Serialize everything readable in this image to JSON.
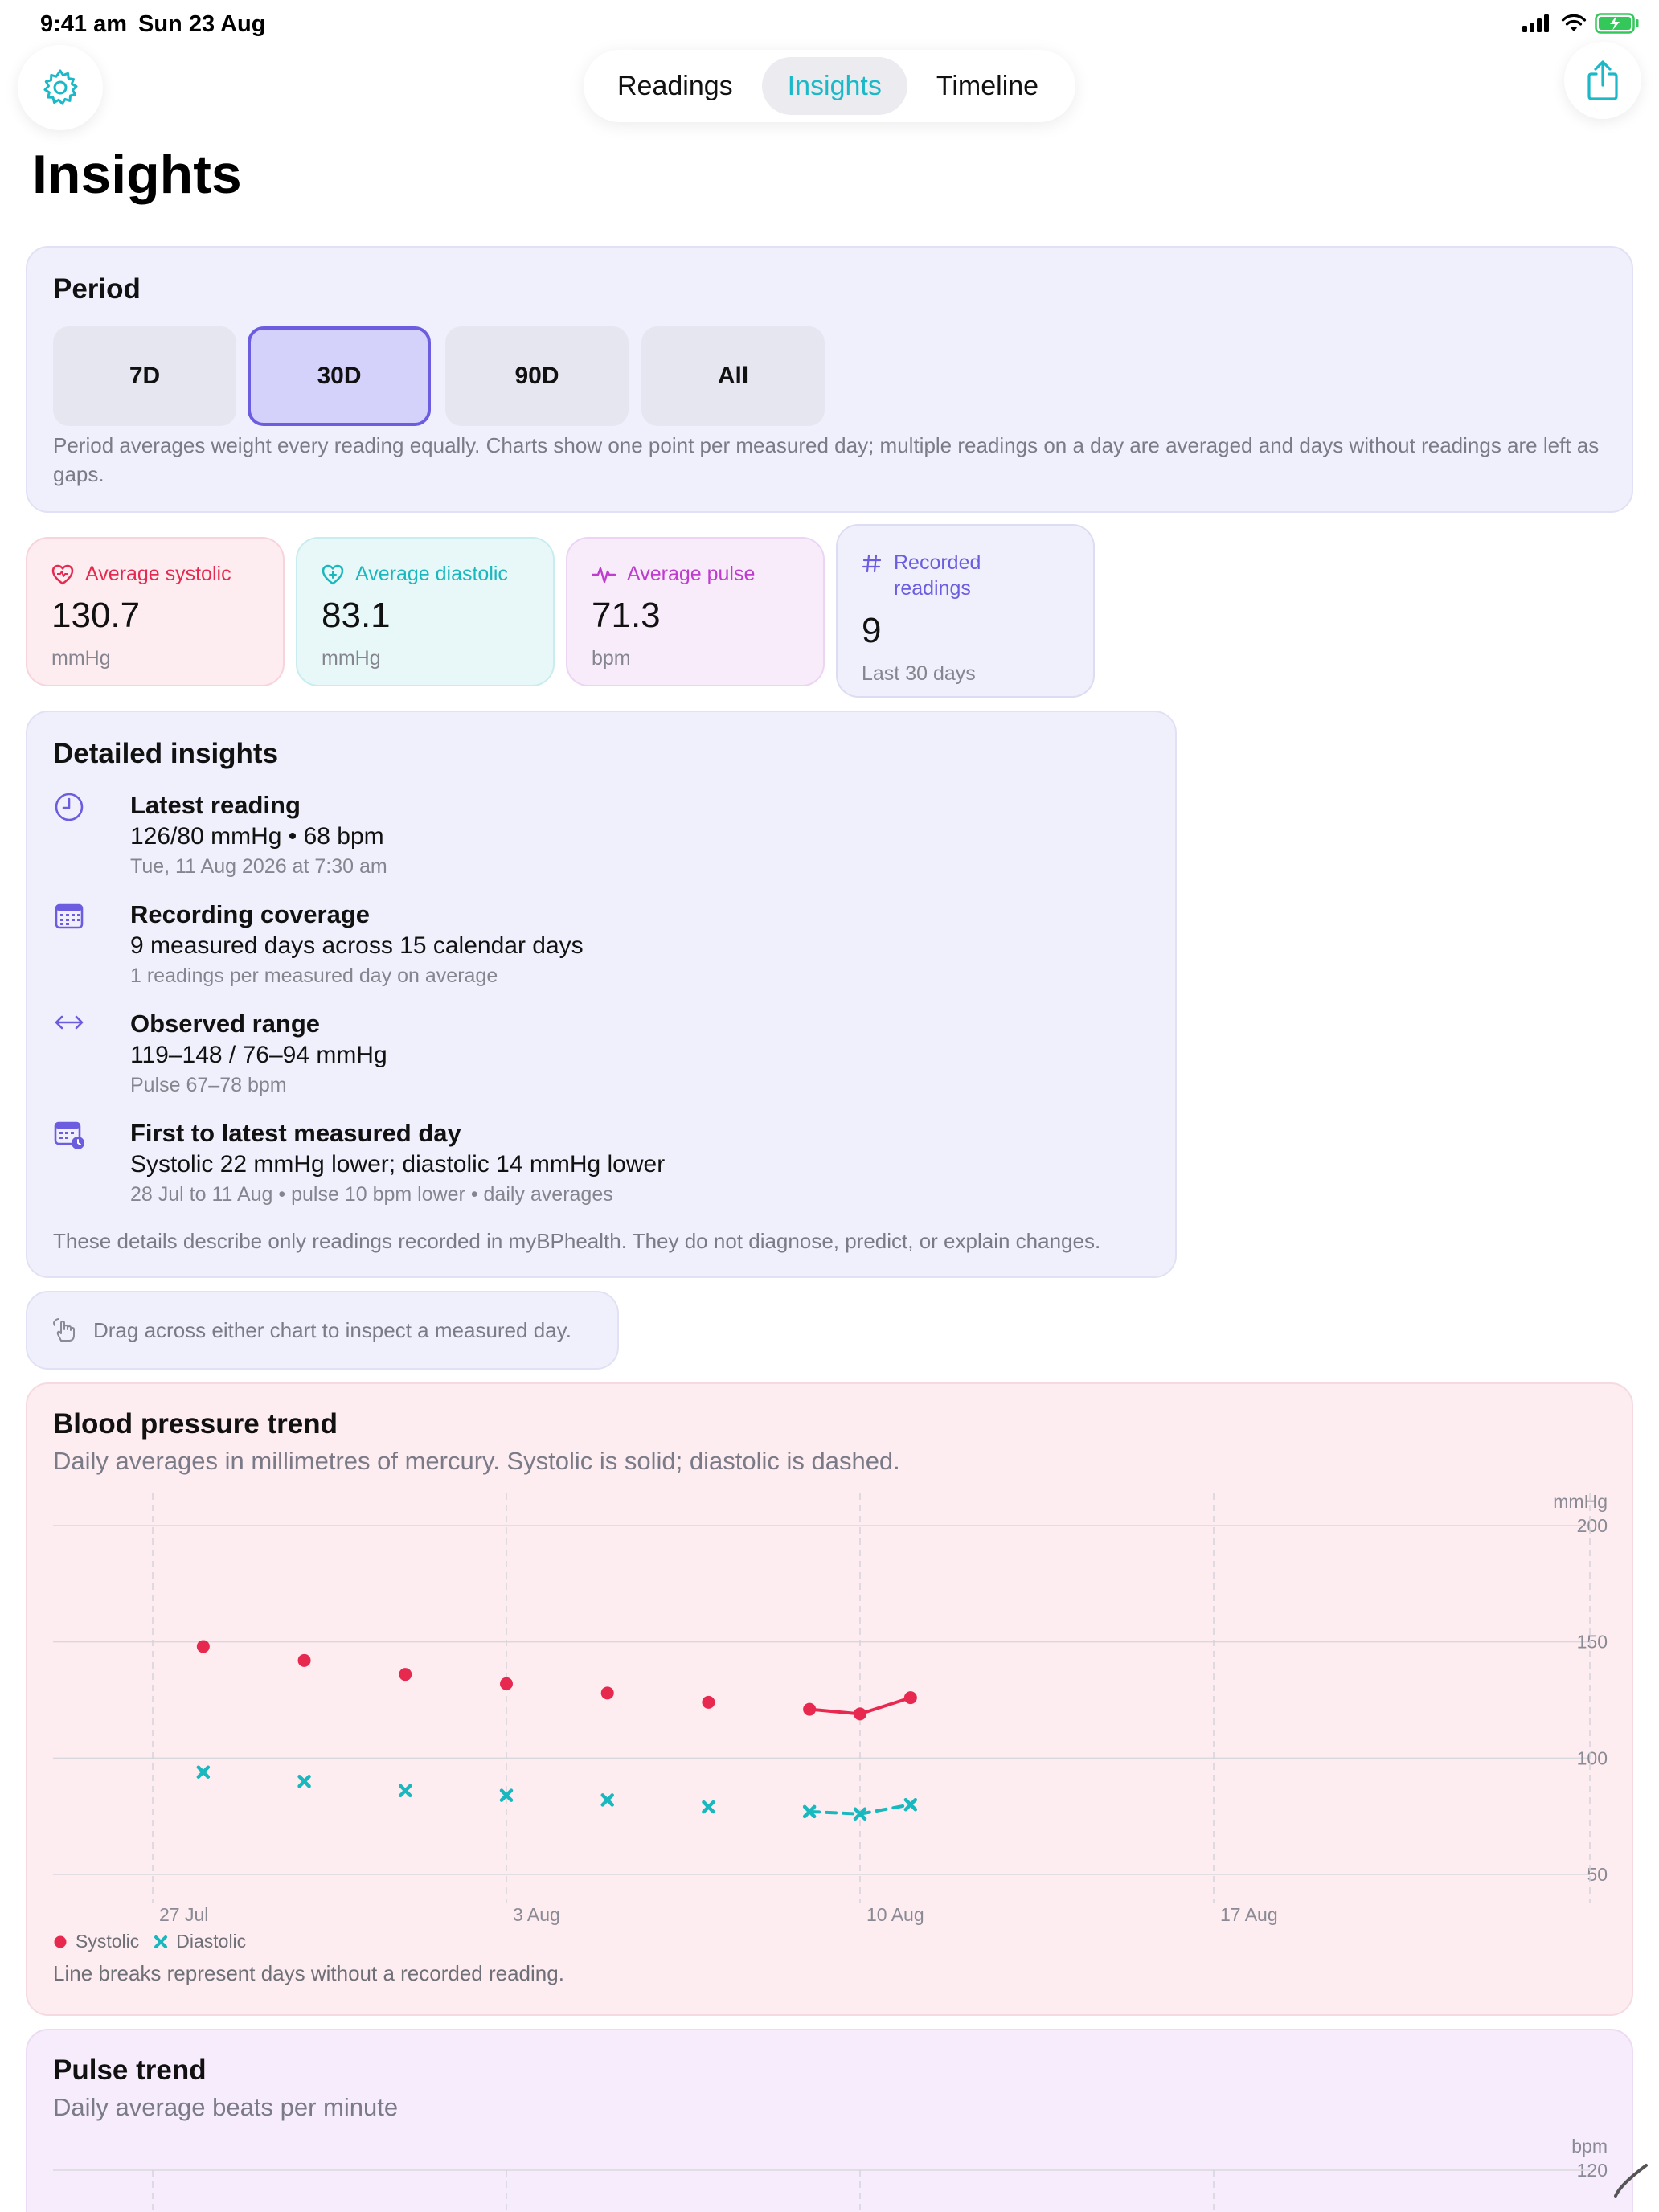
{
  "status_bar": {
    "time": "9:41 am",
    "date": "Sun 23 Aug",
    "battery_color": "#34c759"
  },
  "toolbar": {
    "tabs": [
      {
        "label": "Readings",
        "active": false
      },
      {
        "label": "Insights",
        "active": true
      },
      {
        "label": "Timeline",
        "active": false
      }
    ],
    "left_icon": "gear-icon",
    "right_icon": "share-icon",
    "accent_color": "#1bb8c8"
  },
  "page": {
    "title": "Insights"
  },
  "period": {
    "title": "Period",
    "options": [
      {
        "label": "7D",
        "selected": false
      },
      {
        "label": "30D",
        "selected": true
      },
      {
        "label": "90D",
        "selected": false
      },
      {
        "label": "All",
        "selected": false
      }
    ],
    "note": "Period averages weight every reading equally. Charts show one point per measured day; multiple readings on a day are averaged and days without readings are left as gaps."
  },
  "stats": [
    {
      "label": "Average systolic",
      "value": "130.7",
      "unit": "mmHg",
      "icon": "heart-icon",
      "color": "#e8294f",
      "bg": "#fdecf0",
      "border": "#f7d4dc"
    },
    {
      "label": "Average diastolic",
      "value": "83.1",
      "unit": "mmHg",
      "icon": "heart-icon",
      "color": "#19b8bf",
      "bg": "#e8f8f8",
      "border": "#c9ecee"
    },
    {
      "label": "Average pulse",
      "value": "71.3",
      "unit": "bpm",
      "icon": "waveform-icon",
      "color": "#c03ccf",
      "bg": "#f8ecfb",
      "border": "#ecd4f3"
    },
    {
      "label": "Recorded readings",
      "value": "9",
      "unit": "Last 30 days",
      "icon": "number-icon",
      "color": "#6b5ce0",
      "bg": "#f0f0fc",
      "border": "#dcdcf3"
    }
  ],
  "details": {
    "title": "Detailed insights",
    "items": [
      {
        "icon": "clock-icon",
        "title": "Latest reading",
        "main": "126/80 mmHg • 68 bpm",
        "sub": "Tue, 11 Aug 2026 at 7:30 am"
      },
      {
        "icon": "calendar-icon",
        "title": "Recording coverage",
        "main": "9 measured days across 15 calendar days",
        "sub": "1 readings per measured day on average"
      },
      {
        "icon": "range-arrows-icon",
        "title": "Observed range",
        "main": "119–148 / 76–94 mmHg",
        "sub": "Pulse 67–78 bpm"
      },
      {
        "icon": "calendar-clock-icon",
        "title": "First to latest measured day",
        "main": "Systolic 22 mmHg lower; diastolic 14 mmHg lower",
        "sub": "28 Jul to 11 Aug • pulse 10 bpm lower • daily averages"
      }
    ],
    "footer": "These details describe only readings recorded in myBPhealth. They do not diagnose, predict, or explain changes."
  },
  "hint": {
    "icon": "hand-drag-icon",
    "text": "Drag across either chart to inspect a measured day."
  },
  "bp_chart": {
    "title": "Blood pressure trend",
    "subtitle": "Daily averages in millimetres of mercury. Systolic is solid; diastolic is dashed.",
    "footer": "Line breaks represent days without a recorded reading."
  },
  "pulse_chart": {
    "title": "Pulse trend",
    "subtitle": "Daily average beats per minute",
    "unit": "bpm",
    "top_tick": "120"
  },
  "chart_data": [
    {
      "type": "line",
      "y_unit": "mmHg",
      "ylim": [
        50,
        200
      ],
      "yticks": [
        "200",
        "150",
        "100",
        "50"
      ],
      "xlim": [
        "2026-07-26",
        "2026-08-23"
      ],
      "x_tick_labels": [
        {
          "date": "2026-07-27",
          "label": "27 Jul"
        },
        {
          "date": "2026-08-03",
          "label": "3 Aug"
        },
        {
          "date": "2026-08-10",
          "label": "10 Aug"
        },
        {
          "date": "2026-08-17",
          "label": "17 Aug"
        }
      ],
      "dates": [
        "2026-07-28",
        "2026-07-30",
        "2026-08-01",
        "2026-08-03",
        "2026-08-05",
        "2026-08-07",
        "2026-08-09",
        "2026-08-10",
        "2026-08-11"
      ],
      "series": [
        {
          "name": "Systolic",
          "color": "#e8294f",
          "style": "solid",
          "marker": "dot",
          "values": [
            148,
            142,
            136,
            132,
            128,
            124,
            121,
            119,
            126
          ]
        },
        {
          "name": "Diastolic",
          "color": "#19b8bf",
          "style": "dashed",
          "marker": "cross",
          "values": [
            94,
            90,
            86,
            84,
            82,
            79,
            77,
            76,
            80
          ]
        }
      ],
      "grid": true,
      "legend": "bottom-left"
    }
  ]
}
